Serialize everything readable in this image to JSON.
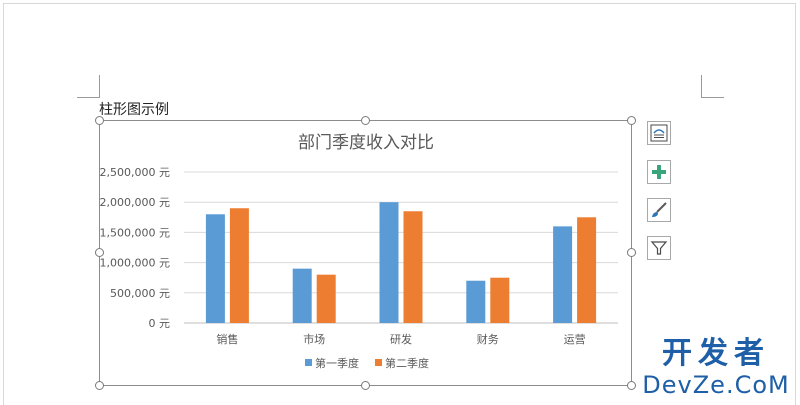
{
  "document": {
    "caption": "柱形图示例"
  },
  "chart_data": {
    "type": "bar",
    "title": "部门季度收入对比",
    "categories": [
      "销售",
      "市场",
      "研发",
      "财务",
      "运营"
    ],
    "series": [
      {
        "name": "第一季度",
        "color": "#5B9BD5",
        "values": [
          1800000,
          900000,
          2000000,
          700000,
          1600000
        ]
      },
      {
        "name": "第二季度",
        "color": "#ED7D31",
        "values": [
          1900000,
          800000,
          1850000,
          750000,
          1750000
        ]
      }
    ],
    "ylim": [
      0,
      2500000
    ],
    "yticks": [
      "0 元",
      "500,000 元",
      "1,000,000 元",
      "1,500,000 元",
      "2,000,000 元",
      "2,500,000 元"
    ],
    "grid": true,
    "legend_position": "bottom"
  },
  "side_buttons": [
    {
      "icon": "layout-options-icon"
    },
    {
      "icon": "chart-elements-plus-icon"
    },
    {
      "icon": "chart-styles-brush-icon"
    },
    {
      "icon": "chart-filter-icon"
    }
  ],
  "watermark": {
    "top": "开发者",
    "bottom": "DevZe.CoM"
  }
}
